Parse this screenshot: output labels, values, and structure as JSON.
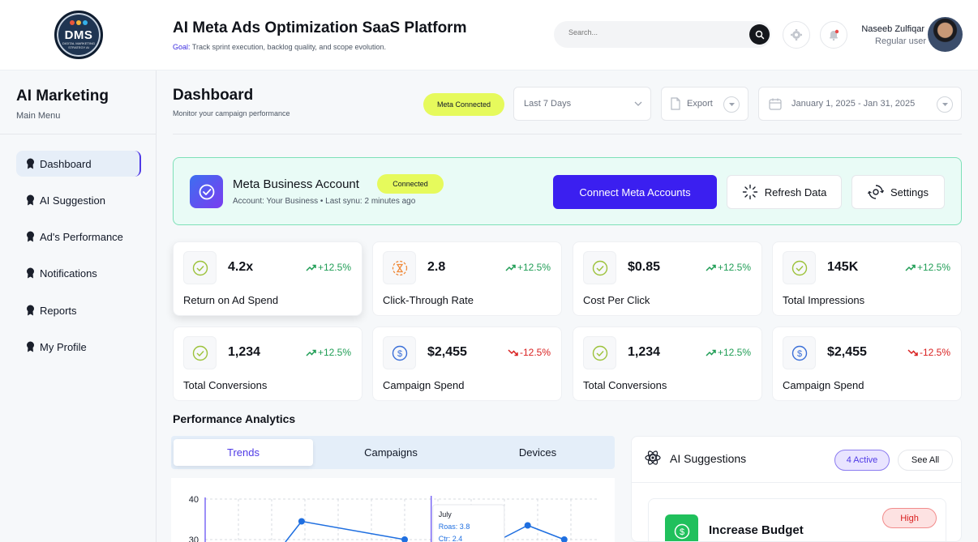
{
  "header": {
    "logo": {
      "text": "DMS",
      "subtitle": "DIGITAL MARKETING STRATEGY AI"
    },
    "app_title": "AI Meta Ads Optimization SaaS Platform",
    "goal_label": "Goal:",
    "goal_text": "Track sprint execution, backlog quality, and scope evolution.",
    "search_placeholder": "Search...",
    "user_name": "Naseeb Zulfiqar",
    "user_role": "Regular user"
  },
  "sidebar": {
    "title": "AI Marketing",
    "subtitle": "Main Menu",
    "items": [
      {
        "label": "Dashboard",
        "active": true
      },
      {
        "label": "AI Suggestion"
      },
      {
        "label": "Ad's Performance"
      },
      {
        "label": "Notifications"
      },
      {
        "label": "Reports"
      },
      {
        "label": "My Profile"
      }
    ]
  },
  "toolbar": {
    "page_title": "Dashboard",
    "page_subtitle": "Monitor your campaign performance",
    "meta_badge": "Meta Connected",
    "range_select": "Last 7 Days",
    "export_label": "Export",
    "date_range": "January 1, 2025 - Jan 31, 2025"
  },
  "meta_account": {
    "name": "Meta Business Account",
    "status": "Connected",
    "detail": "Account: Your Business • Last synu: 2 minutes ago",
    "connect_label": "Connect Meta Accounts",
    "refresh_label": "Refresh Data",
    "settings_label": "Settings"
  },
  "stats": [
    {
      "value": "4.2x",
      "change": "+12.5%",
      "trend": "up",
      "label": "Return on Ad Spend",
      "icon": "check-circle-icon"
    },
    {
      "value": "2.8",
      "change": "+12.5%",
      "trend": "up",
      "label": "Click-Through Rate",
      "icon": "hourglass-icon"
    },
    {
      "value": "$0.85",
      "change": "+12.5%",
      "trend": "up",
      "label": "Cost Per Click",
      "icon": "check-circle-icon"
    },
    {
      "value": "145K",
      "change": "+12.5%",
      "trend": "up",
      "label": "Total Impressions",
      "icon": "check-circle-icon"
    },
    {
      "value": "1,234",
      "change": "+12.5%",
      "trend": "up",
      "label": "Total Conversions",
      "icon": "check-circle-icon"
    },
    {
      "value": "$2,455",
      "change": "-12.5%",
      "trend": "down",
      "label": "Campaign Spend",
      "icon": "dollar-icon"
    },
    {
      "value": "1,234",
      "change": "+12.5%",
      "trend": "up",
      "label": "Total Conversions",
      "icon": "check-circle-icon"
    },
    {
      "value": "$2,455",
      "change": "-12.5%",
      "trend": "down",
      "label": "Campaign Spend",
      "icon": "dollar-icon"
    }
  ],
  "analytics": {
    "title": "Performance Analytics",
    "tabs": [
      "Trends",
      "Campaigns",
      "Devices"
    ],
    "active_tab": "Trends"
  },
  "chart_data": {
    "type": "line",
    "y_ticks": [
      "40",
      "30"
    ],
    "ylim": [
      30,
      40
    ],
    "visible_points": [
      {
        "x_index": 2.9,
        "y": 34.5
      },
      {
        "x_index": 6.0,
        "y": 30.0
      },
      {
        "x_index": 9.7,
        "y": 33.5
      },
      {
        "x_index": 10.8,
        "y": 30.0
      }
    ],
    "tooltip": {
      "title": "July",
      "lines": [
        "Roas: 3.8",
        "Ctr: 2.4"
      ]
    }
  },
  "ai_suggestions": {
    "title": "AI Suggestions",
    "active_badge": "4 Active",
    "see_all": "See All",
    "items": [
      {
        "title": "Increase Budget",
        "priority": "High"
      }
    ]
  },
  "colors": {
    "accent": "#3b1ff0",
    "badge_lime": "#e6fa5c",
    "positive": "#1f9d55",
    "negative": "#d92020",
    "meta_card_bg": "#e9fbf6"
  }
}
